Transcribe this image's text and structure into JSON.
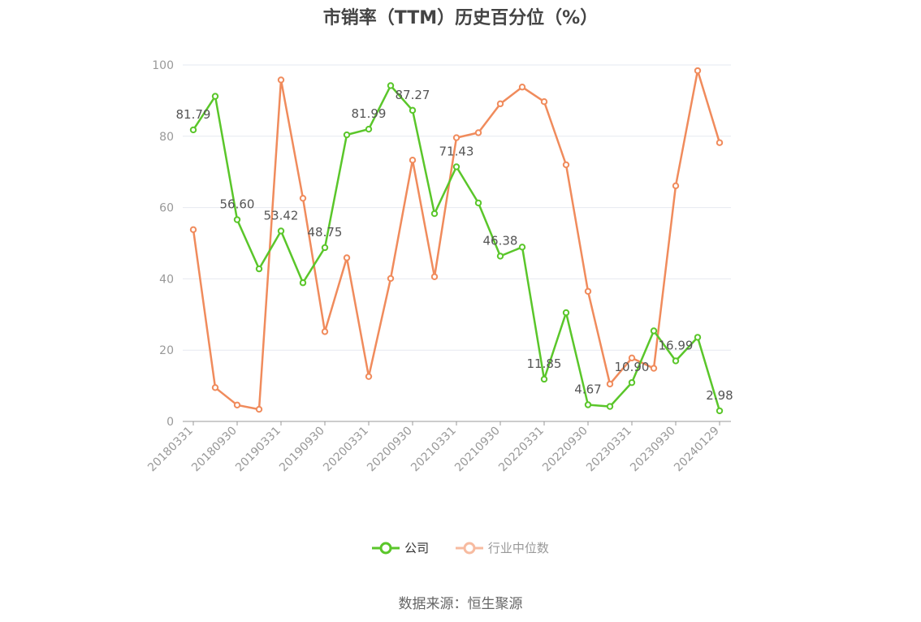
{
  "title": "市销率（TTM）历史百分位（%）",
  "source_note": "数据来源：恒生聚源",
  "colors": {
    "company": "#5ac62a",
    "industry": "#f08b5c",
    "industry_legend": "#f7bba0",
    "axis_text": "#999999",
    "grid": "#e6e9f0",
    "axis_line": "#999999"
  },
  "chart_data": {
    "type": "line",
    "ylim": [
      0,
      100
    ],
    "y_ticks": [
      "0",
      "20",
      "40",
      "60",
      "80",
      "100"
    ],
    "x_tick_labels": [
      "20180331",
      "20180930",
      "20190331",
      "20190930",
      "20200331",
      "20200930",
      "20210331",
      "20210930",
      "20220331",
      "20220930",
      "20230331",
      "20230930",
      "20240129"
    ],
    "x": [
      "20180331",
      "20180630",
      "20180930",
      "20181231",
      "20190331",
      "20190630",
      "20190930",
      "20191231",
      "20200331",
      "20200630",
      "20200930",
      "20201231",
      "20210331",
      "20210630",
      "20210930",
      "20211231",
      "20220331",
      "20220630",
      "20220930",
      "20221231",
      "20230331",
      "20230630",
      "20230930",
      "20231231",
      "20240129"
    ],
    "legend_position": "bottom-center",
    "grid": true,
    "series": [
      {
        "name": "公司",
        "values": [
          81.79,
          91.2,
          56.6,
          42.8,
          53.42,
          38.9,
          48.75,
          80.4,
          81.99,
          94.2,
          87.27,
          58.3,
          71.43,
          61.3,
          46.38,
          48.9,
          11.85,
          30.5,
          4.67,
          4.2,
          10.9,
          25.4,
          16.99,
          23.6,
          2.98
        ],
        "labels": [
          "81.79",
          "",
          "56.60",
          "",
          "53.42",
          "",
          "48.75",
          "",
          "81.99",
          "",
          "87.27",
          "",
          "71.43",
          "",
          "46.38",
          "",
          "11.85",
          "",
          "4.67",
          "",
          "10.90",
          "",
          "16.99",
          "",
          "2.98"
        ]
      },
      {
        "name": "行业中位数",
        "values": [
          53.8,
          9.5,
          4.6,
          3.4,
          95.8,
          62.6,
          25.2,
          45.9,
          12.6,
          40.1,
          73.3,
          40.6,
          79.6,
          81.0,
          89.1,
          93.8,
          89.7,
          72.0,
          36.5,
          10.5,
          17.8,
          14.9,
          66.1,
          98.4,
          78.2
        ]
      }
    ]
  }
}
